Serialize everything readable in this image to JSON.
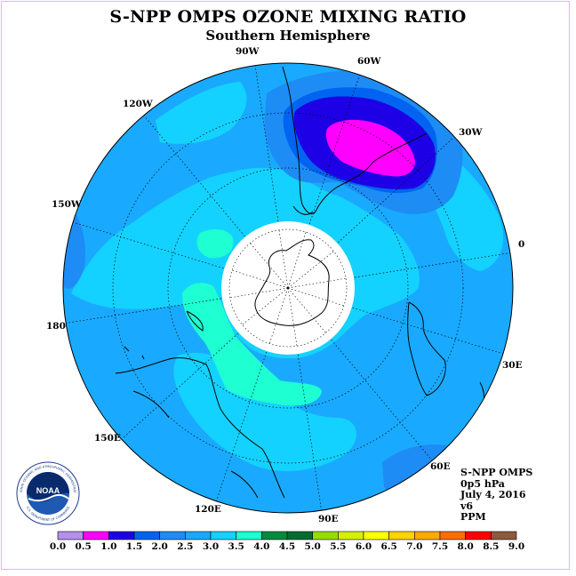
{
  "header": {
    "title": "S-NPP OMPS OZONE MIXING RATIO",
    "subtitle": "Southern Hemisphere"
  },
  "map_labels": {
    "lon_90w": "90W",
    "lon_60w": "60W",
    "lon_120w": "120W",
    "lon_30w": "30W",
    "lon_150w": "150W",
    "lon_0": "0",
    "lon_180": "180",
    "lon_30e": "30E",
    "lon_150e": "150E",
    "lon_60e": "60E",
    "lon_120e": "120E",
    "lon_90e": "90E"
  },
  "info": {
    "line1": "S-NPP OMPS",
    "line2": "0p5 hPa",
    "line3": "July 4, 2016",
    "line4": "v6",
    "line5": "PPM"
  },
  "logo": {
    "text": "NOAA",
    "ring_text": "NATIONAL OCEANIC AND ATMOSPHERIC ADMINISTRATION",
    "ring_text_bottom": "U.S. DEPARTMENT OF COMMERCE"
  },
  "colorbar": {
    "tick_labels": [
      "0.0",
      "0.5",
      "1.0",
      "1.5",
      "2.0",
      "2.5",
      "3.0",
      "3.5",
      "4.0",
      "4.5",
      "5.0",
      "5.5",
      "6.0",
      "6.5",
      "7.0",
      "7.5",
      "8.0",
      "8.5",
      "9.0"
    ],
    "colors": [
      "#b48ff0",
      "#dcb4f0",
      "#ff00ff",
      "#1e00e6",
      "#0064f0",
      "#1e8cf5",
      "#19aaff",
      "#14d2ff",
      "#1effd2",
      "#008c3c",
      "#006e32",
      "#96dc00",
      "#d2f000",
      "#ffff00",
      "#ffd200",
      "#ffaa00",
      "#ff6e00",
      "#ff0000",
      "#8c5a3c"
    ]
  },
  "field_colors": {
    "background": "#19aaff",
    "band_35": "#14d2ff",
    "band_40": "#1effd2",
    "band_25": "#1e8cf5",
    "band_20": "#0064f0",
    "band_15": "#1e00e6",
    "band_10": "#ff00ff",
    "polar_night": "#ffffff"
  }
}
